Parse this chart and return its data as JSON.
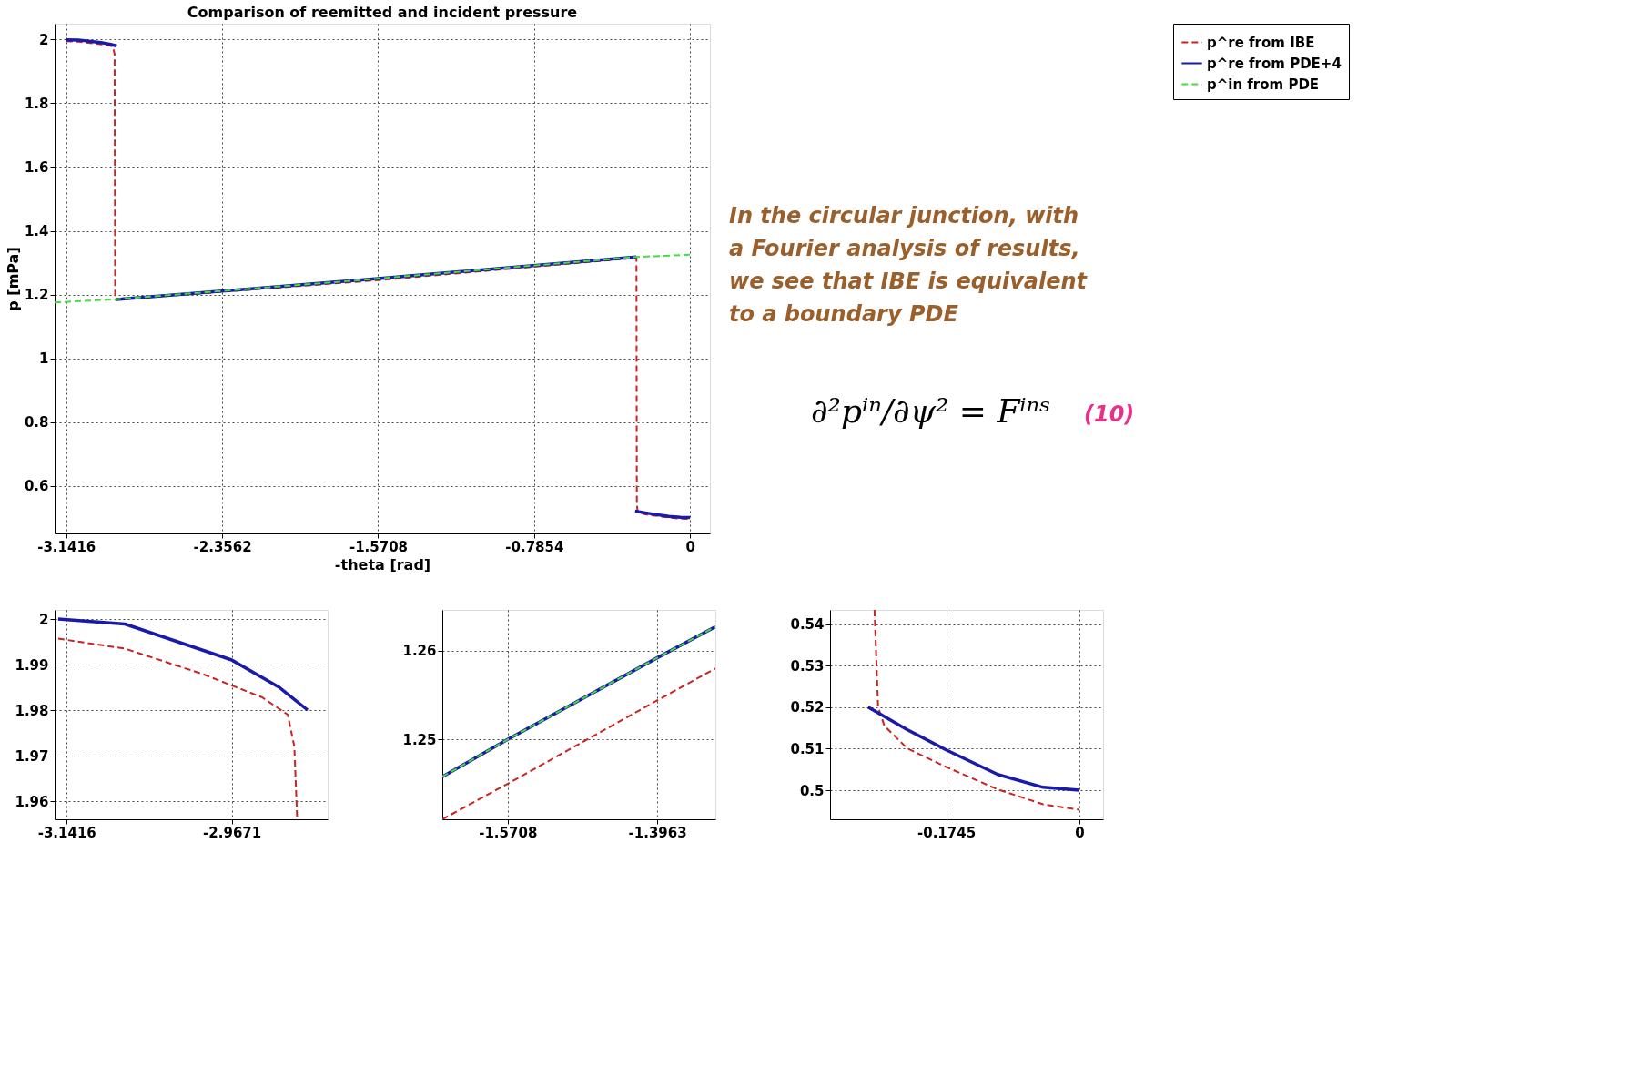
{
  "chart_data": [
    {
      "type": "line",
      "title": "Comparison of reemitted and incident pressure",
      "xlabel": "-theta [rad]",
      "ylabel": "p [mPa]",
      "xlim": [
        -3.2,
        0.1
      ],
      "ylim": [
        0.45,
        2.05
      ],
      "xticks": [
        -3.1416,
        -2.3562,
        -1.5708,
        -0.7854,
        0
      ],
      "yticks": [
        0.6,
        0.8,
        1,
        1.2,
        1.4,
        1.6,
        1.8,
        2
      ],
      "grid": true,
      "legend": "right",
      "annotations": [
        "In the circular junction, with a Fourier analysis of results, we see that IBE is equivalent to a boundary PDE",
        "∂²pⁱⁿ/∂ψ² = Fⁱⁿˢ",
        "(10)"
      ],
      "series": [
        {
          "name": "p^re from IBE",
          "color": "#cc2222",
          "line_style": "dashed",
          "x": [
            -3.1416,
            -3.08,
            -2.999,
            -2.935,
            -2.908,
            -2.898,
            -2.895,
            -1.5708,
            -1.3963,
            -0.27,
            -0.268,
            -0.264,
            -0.255,
            -0.2256,
            -0.1745,
            -0.107,
            -0.0475,
            0
          ],
          "values": [
            1.995,
            1.9935,
            1.988,
            1.983,
            1.979,
            1.956,
            1.1835,
            1.245,
            1.2544,
            1.315,
            0.54,
            0.52,
            0.5155,
            0.51,
            0.5056,
            0.5,
            0.4966,
            0.4953
          ]
        },
        {
          "name": "p^re from PDE+4",
          "color": "#1a1aaa",
          "line_style": "solid",
          "x": [
            -3.1416,
            -3.08,
            -2.9671,
            -2.917,
            -2.887,
            null,
            -2.89,
            -1.5708,
            -1.3963,
            -0.27,
            null,
            -0.2767,
            -0.2256,
            -0.1745,
            -0.107,
            -0.0475,
            0
          ],
          "values": [
            1.9995,
            1.9989,
            1.991,
            1.985,
            1.98,
            null,
            1.184,
            1.25,
            1.2592,
            1.318,
            null,
            0.52,
            0.5146,
            0.5097,
            0.5038,
            0.5007,
            0.5
          ]
        },
        {
          "name": "p^in from PDE",
          "color": "#44dd44",
          "line_style": "dashed",
          "x": [
            -3.2,
            -2.89,
            -1.647,
            -1.5708,
            -1.3963,
            -1.3284,
            -0.27,
            0
          ],
          "values": [
            1.175,
            1.185,
            1.2458,
            1.25,
            1.2592,
            1.2627,
            1.318,
            1.325
          ]
        }
      ]
    },
    {
      "type": "line",
      "xlim": [
        -3.1543,
        -2.8658
      ],
      "ylim": [
        1.956,
        2.002
      ],
      "xticks": [
        -3.1416,
        -2.9671
      ],
      "yticks": [
        1.96,
        1.97,
        1.98,
        1.99,
        2
      ],
      "grid": true,
      "series": [
        {
          "color": "#cc2222",
          "line_style": "dashed",
          "x": [
            -3.1506,
            -3.08,
            -2.999,
            -2.935,
            -2.908,
            -2.901,
            -2.898
          ],
          "values": [
            1.9957,
            1.9935,
            1.988,
            1.9828,
            1.979,
            1.972,
            1.956
          ]
        },
        {
          "color": "#1a1aaa",
          "line_style": "solid",
          "x": [
            -3.1506,
            -3.08,
            -2.9671,
            -2.917,
            -2.887
          ],
          "values": [
            2.0,
            1.9989,
            1.991,
            1.985,
            1.98
          ]
        }
      ]
    },
    {
      "type": "line",
      "xlim": [
        -1.647,
        -1.3284
      ],
      "ylim": [
        1.241,
        1.2646
      ],
      "xticks": [
        -1.5708,
        -1.3963
      ],
      "yticks": [
        1.25,
        1.26
      ],
      "grid": true,
      "series": [
        {
          "color": "#cc2222",
          "line_style": "dashed",
          "x": [
            -1.647,
            -1.5708,
            -1.3963,
            -1.3284
          ],
          "values": [
            1.241,
            1.245,
            1.2544,
            1.258
          ]
        },
        {
          "color": "#1a1aaa",
          "line_style": "solid",
          "x": [
            -1.647,
            -1.5708,
            -1.3963,
            -1.3284
          ],
          "values": [
            1.2458,
            1.25,
            1.2592,
            1.2627
          ]
        },
        {
          "color": "#44dd44",
          "line_style": "dashed",
          "x": [
            -1.647,
            -1.5708,
            -1.3963,
            -1.3284
          ],
          "values": [
            1.2458,
            1.25,
            1.2592,
            1.2627
          ]
        }
      ]
    },
    {
      "type": "line",
      "xlim": [
        -0.3265,
        0.031
      ],
      "ylim": [
        0.493,
        0.5434
      ],
      "xticks": [
        -0.1745,
        0
      ],
      "yticks": [
        0.5,
        0.51,
        0.52,
        0.53,
        0.54
      ],
      "grid": true,
      "series": [
        {
          "color": "#cc2222",
          "line_style": "dashed",
          "x": [
            -0.2683,
            -0.2636,
            -0.2553,
            -0.2256,
            -0.1745,
            -0.1069,
            -0.0475,
            0
          ],
          "values": [
            0.5434,
            0.52,
            0.5155,
            0.5101,
            0.5056,
            0.5002,
            0.4966,
            0.4953
          ]
        },
        {
          "color": "#1a1aaa",
          "line_style": "solid",
          "x": [
            -0.2767,
            -0.2256,
            -0.1745,
            -0.1069,
            -0.0475,
            0
          ],
          "values": [
            0.52,
            0.5146,
            0.5097,
            0.5038,
            0.5007,
            0.5
          ]
        }
      ]
    }
  ]
}
